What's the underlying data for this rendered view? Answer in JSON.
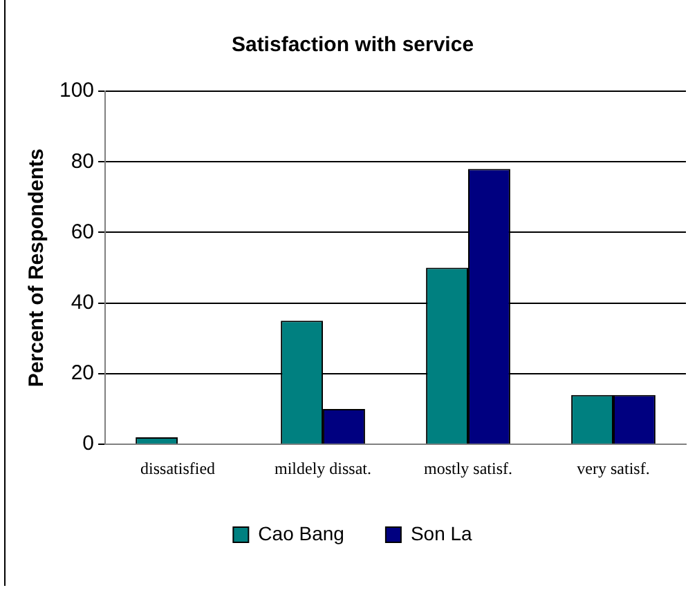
{
  "chart_data": {
    "type": "bar",
    "title": "Satisfaction with service",
    "ylabel": "Percent of Respondents",
    "categories": [
      "dissatisfied",
      "mildely dissat.",
      "mostly satisf.",
      "very satisf."
    ],
    "series": [
      {
        "name": "Cao Bang",
        "color": "#008080",
        "values": [
          2,
          35,
          50,
          14
        ]
      },
      {
        "name": "Son La",
        "color": "#000080",
        "values": [
          0,
          10,
          78,
          14
        ]
      }
    ],
    "ylim": [
      0,
      100
    ],
    "yticks": [
      0,
      20,
      40,
      60,
      80,
      100
    ],
    "grid": "y",
    "legend": "bottom"
  }
}
